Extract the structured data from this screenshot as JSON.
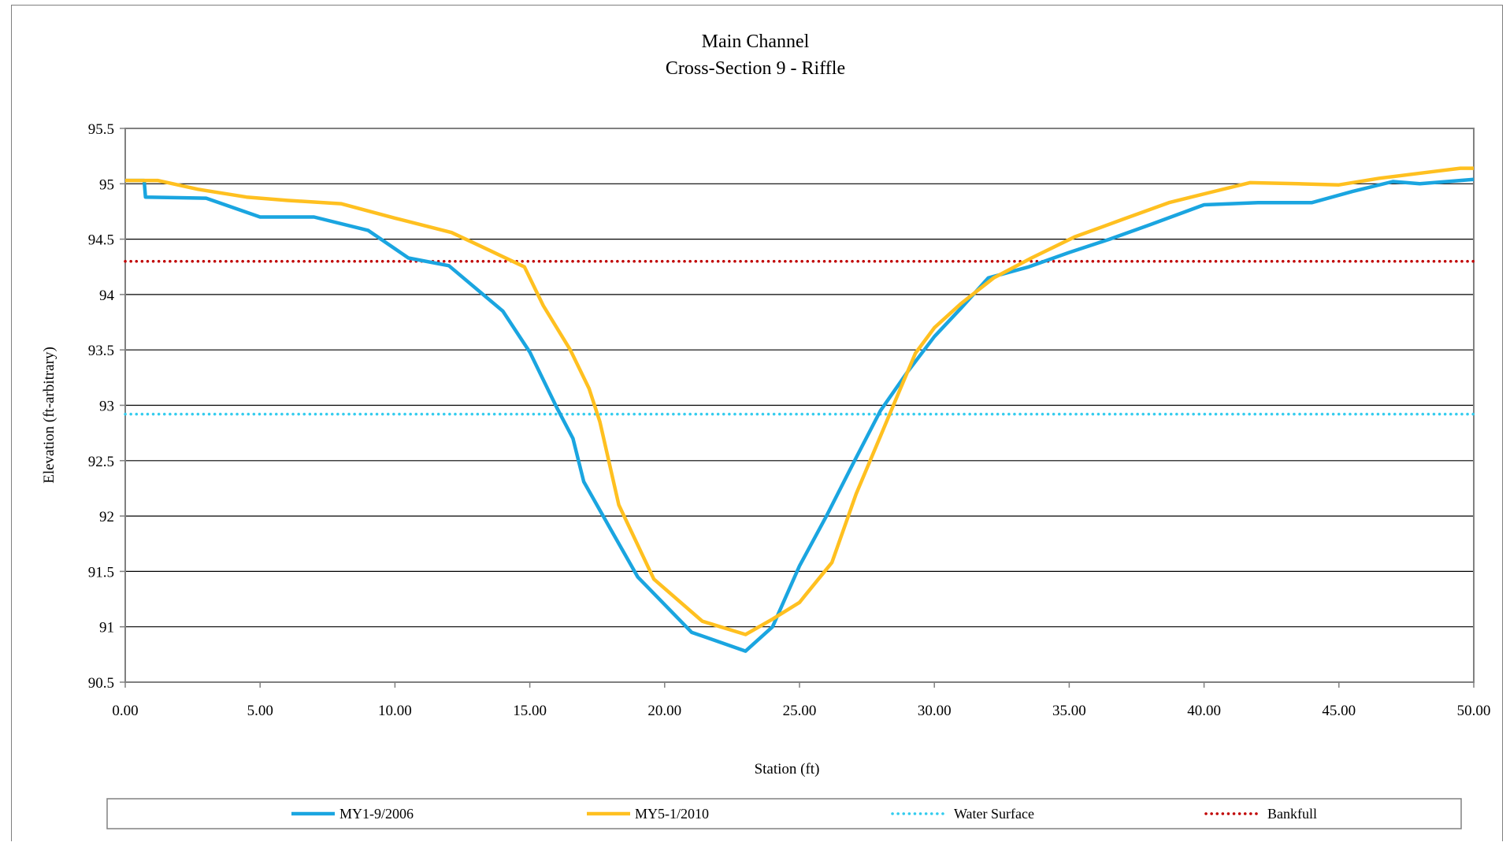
{
  "chart_data": {
    "type": "line",
    "title": "Main Channel",
    "subtitle": "Cross-Section 9 - Riffle",
    "xlabel": "Station (ft)",
    "ylabel": "Elevation (ft-arbitrary)",
    "xlim": [
      0,
      50
    ],
    "ylim": [
      90.5,
      95.5
    ],
    "x_ticks": [
      0,
      5,
      10,
      15,
      20,
      25,
      30,
      35,
      40,
      45,
      50
    ],
    "x_tick_labels": [
      "0.00",
      "5.00",
      "10.00",
      "15.00",
      "20.00",
      "25.00",
      "30.00",
      "35.00",
      "40.00",
      "45.00",
      "50.00"
    ],
    "y_ticks": [
      90.5,
      91,
      91.5,
      92,
      92.5,
      93,
      93.5,
      94,
      94.5,
      95,
      95.5
    ],
    "y_tick_labels": [
      "90.5",
      "91",
      "91.5",
      "92",
      "92.5",
      "93",
      "93.5",
      "94",
      "94.5",
      "95",
      "95.5"
    ],
    "grid": "horizontal",
    "legend_position": "bottom",
    "series": [
      {
        "name": "MY1-9/2006",
        "style": "solid",
        "color": "#1aa5e0",
        "points": [
          [
            0,
            95.03
          ],
          [
            0.7,
            95.03
          ],
          [
            0.75,
            94.88
          ],
          [
            3,
            94.87
          ],
          [
            5,
            94.7
          ],
          [
            7,
            94.7
          ],
          [
            9,
            94.58
          ],
          [
            10.5,
            94.33
          ],
          [
            12,
            94.26
          ],
          [
            14,
            93.85
          ],
          [
            15,
            93.48
          ],
          [
            16,
            92.98
          ],
          [
            16.6,
            92.7
          ],
          [
            17,
            92.31
          ],
          [
            18,
            91.88
          ],
          [
            19,
            91.45
          ],
          [
            21,
            90.95
          ],
          [
            23,
            90.78
          ],
          [
            24,
            91.0
          ],
          [
            25,
            91.55
          ],
          [
            26,
            92.0
          ],
          [
            27,
            92.48
          ],
          [
            28,
            92.95
          ],
          [
            29,
            93.3
          ],
          [
            30,
            93.62
          ],
          [
            31,
            93.88
          ],
          [
            32,
            94.15
          ],
          [
            33.5,
            94.25
          ],
          [
            35,
            94.38
          ],
          [
            36.5,
            94.5
          ],
          [
            38,
            94.63
          ],
          [
            40,
            94.81
          ],
          [
            42,
            94.83
          ],
          [
            44,
            94.83
          ],
          [
            45.5,
            94.93
          ],
          [
            47,
            95.02
          ],
          [
            48,
            95.0
          ],
          [
            50,
            95.04
          ]
        ]
      },
      {
        "name": "MY5-1/2010",
        "style": "solid",
        "color": "#ffc020",
        "points": [
          [
            0,
            95.03
          ],
          [
            1.2,
            95.03
          ],
          [
            2.7,
            94.95
          ],
          [
            4.5,
            94.88
          ],
          [
            6,
            94.85
          ],
          [
            8,
            94.82
          ],
          [
            10,
            94.69
          ],
          [
            12.1,
            94.56
          ],
          [
            13.5,
            94.4
          ],
          [
            14.8,
            94.25
          ],
          [
            15.5,
            93.9
          ],
          [
            16.5,
            93.5
          ],
          [
            17.2,
            93.15
          ],
          [
            17.6,
            92.85
          ],
          [
            18.3,
            92.1
          ],
          [
            19.6,
            91.43
          ],
          [
            21.4,
            91.05
          ],
          [
            23,
            90.93
          ],
          [
            24,
            91.07
          ],
          [
            25,
            91.22
          ],
          [
            25.2,
            91.28
          ],
          [
            26.2,
            91.58
          ],
          [
            27.1,
            92.2
          ],
          [
            28,
            92.72
          ],
          [
            28.6,
            93.07
          ],
          [
            29.3,
            93.47
          ],
          [
            30,
            93.7
          ],
          [
            31,
            93.92
          ],
          [
            32.2,
            94.15
          ],
          [
            33.6,
            94.33
          ],
          [
            35.2,
            94.52
          ],
          [
            37,
            94.68
          ],
          [
            38.7,
            94.83
          ],
          [
            40.2,
            94.92
          ],
          [
            41.7,
            95.01
          ],
          [
            43.5,
            95.0
          ],
          [
            45,
            94.99
          ],
          [
            46.5,
            95.05
          ],
          [
            48.5,
            95.11
          ],
          [
            49.5,
            95.14
          ],
          [
            50,
            95.14
          ]
        ]
      },
      {
        "name": "Water Surface",
        "style": "dotted",
        "color": "#33ccee",
        "points": [
          [
            0,
            92.92
          ],
          [
            50,
            92.92
          ]
        ]
      },
      {
        "name": "Bankfull",
        "style": "dotted",
        "color": "#c00000",
        "points": [
          [
            0,
            94.3
          ],
          [
            50,
            94.3
          ]
        ]
      }
    ]
  }
}
